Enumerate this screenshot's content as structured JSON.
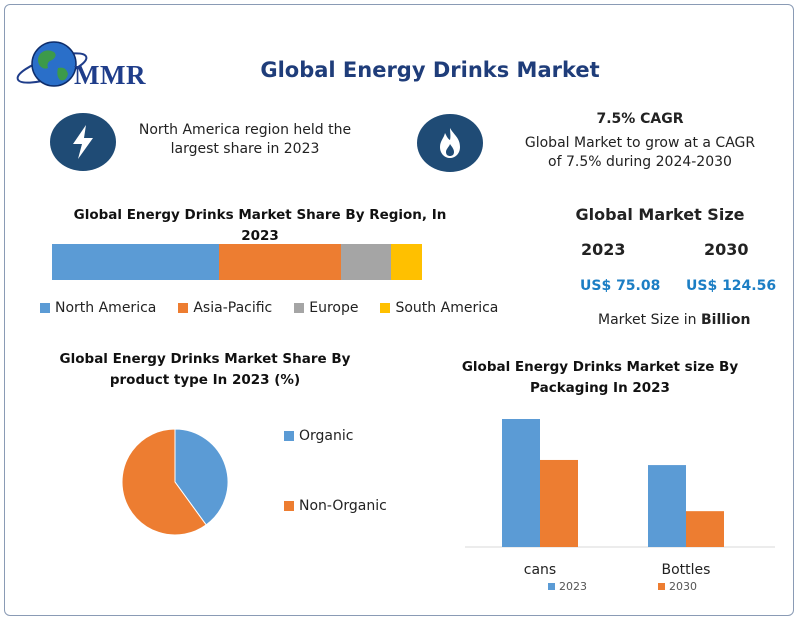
{
  "brand": {
    "logo_text": "MMR"
  },
  "title": "Global Energy Drinks Market",
  "info_left": {
    "icon": "lightning-bolt-icon",
    "line1": "North America region held the",
    "line2": "largest share in 2023"
  },
  "info_right": {
    "icon": "flame-icon",
    "heading": "7.5% CAGR",
    "line1": "Global Market to grow at a CAGR",
    "line2": "of 7.5% during 2024-2030"
  },
  "market_size": {
    "title": "Global Market Size",
    "year_a": "2023",
    "year_b": "2030",
    "value_a": "US$ 75.08",
    "value_b": "US$ 124.56",
    "unit_prefix": "Market Size in ",
    "unit_bold": "Billion"
  },
  "colors": {
    "blue": "#5b9bd5",
    "orange": "#ed7d31",
    "gray": "#a5a5a5",
    "yellow": "#ffc000",
    "navy": "#1f4b75",
    "value_blue": "#1c7ec4"
  },
  "chart_data": [
    {
      "type": "bar",
      "orientation": "horizontal-stacked",
      "title_line1": "Global Energy Drinks Market Share By Region, In 2023",
      "title_line2": "(%)",
      "series": [
        {
          "name": "North America",
          "value": 45,
          "color": "#5b9bd5"
        },
        {
          "name": "Asia-Pacific",
          "value": 33,
          "color": "#ed7d31"
        },
        {
          "name": "Europe",
          "value": 13.5,
          "color": "#a5a5a5"
        },
        {
          "name": "South America",
          "value": 8.5,
          "color": "#ffc000"
        }
      ],
      "legend": "bottom"
    },
    {
      "type": "pie",
      "title_line1": "Global Energy Drinks Market Share By",
      "title_line2": "product type In 2023 (%)",
      "slices": [
        {
          "name": "Organic",
          "value": 40,
          "color": "#5b9bd5"
        },
        {
          "name": "Non-Organic",
          "value": 60,
          "color": "#ed7d31"
        }
      ],
      "legend": "right"
    },
    {
      "type": "bar",
      "title_line1": "Global Energy Drinks Market size By",
      "title_line2": "Packaging In 2023",
      "categories": [
        "cans",
        "Bottles"
      ],
      "series": [
        {
          "name": "2023",
          "values": [
            100,
            64
          ],
          "color": "#5b9bd5"
        },
        {
          "name": "2030",
          "values": [
            68,
            28
          ],
          "color": "#ed7d31"
        }
      ],
      "ylim": [
        0,
        100
      ],
      "legend": "bottom"
    }
  ]
}
